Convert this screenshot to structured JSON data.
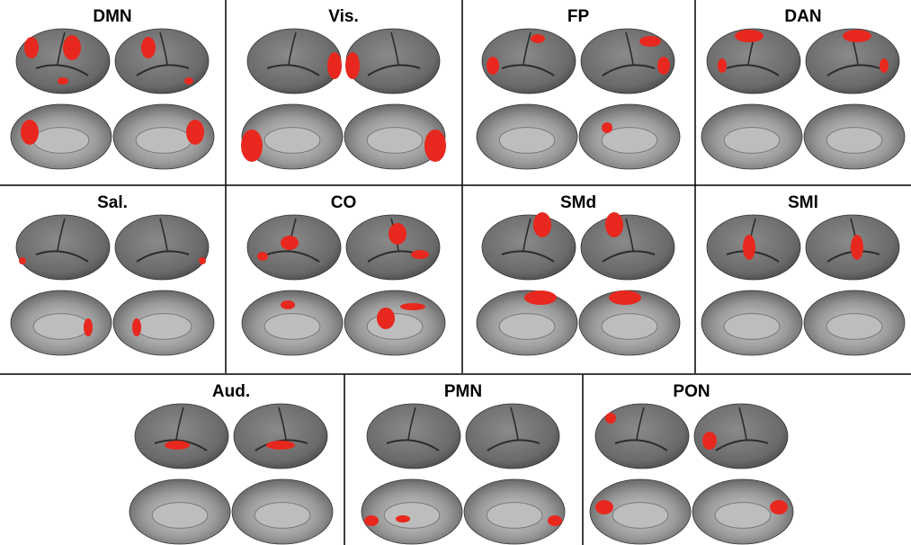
{
  "panels": [
    {
      "label": "DMN"
    },
    {
      "label": "Vis."
    },
    {
      "label": "FP"
    },
    {
      "label": "DAN"
    },
    {
      "label": "Sal."
    },
    {
      "label": "CO"
    },
    {
      "label": "SMd"
    },
    {
      "label": "SMl"
    },
    {
      "label": "Aud."
    },
    {
      "label": "PMN"
    },
    {
      "label": "PON"
    }
  ]
}
